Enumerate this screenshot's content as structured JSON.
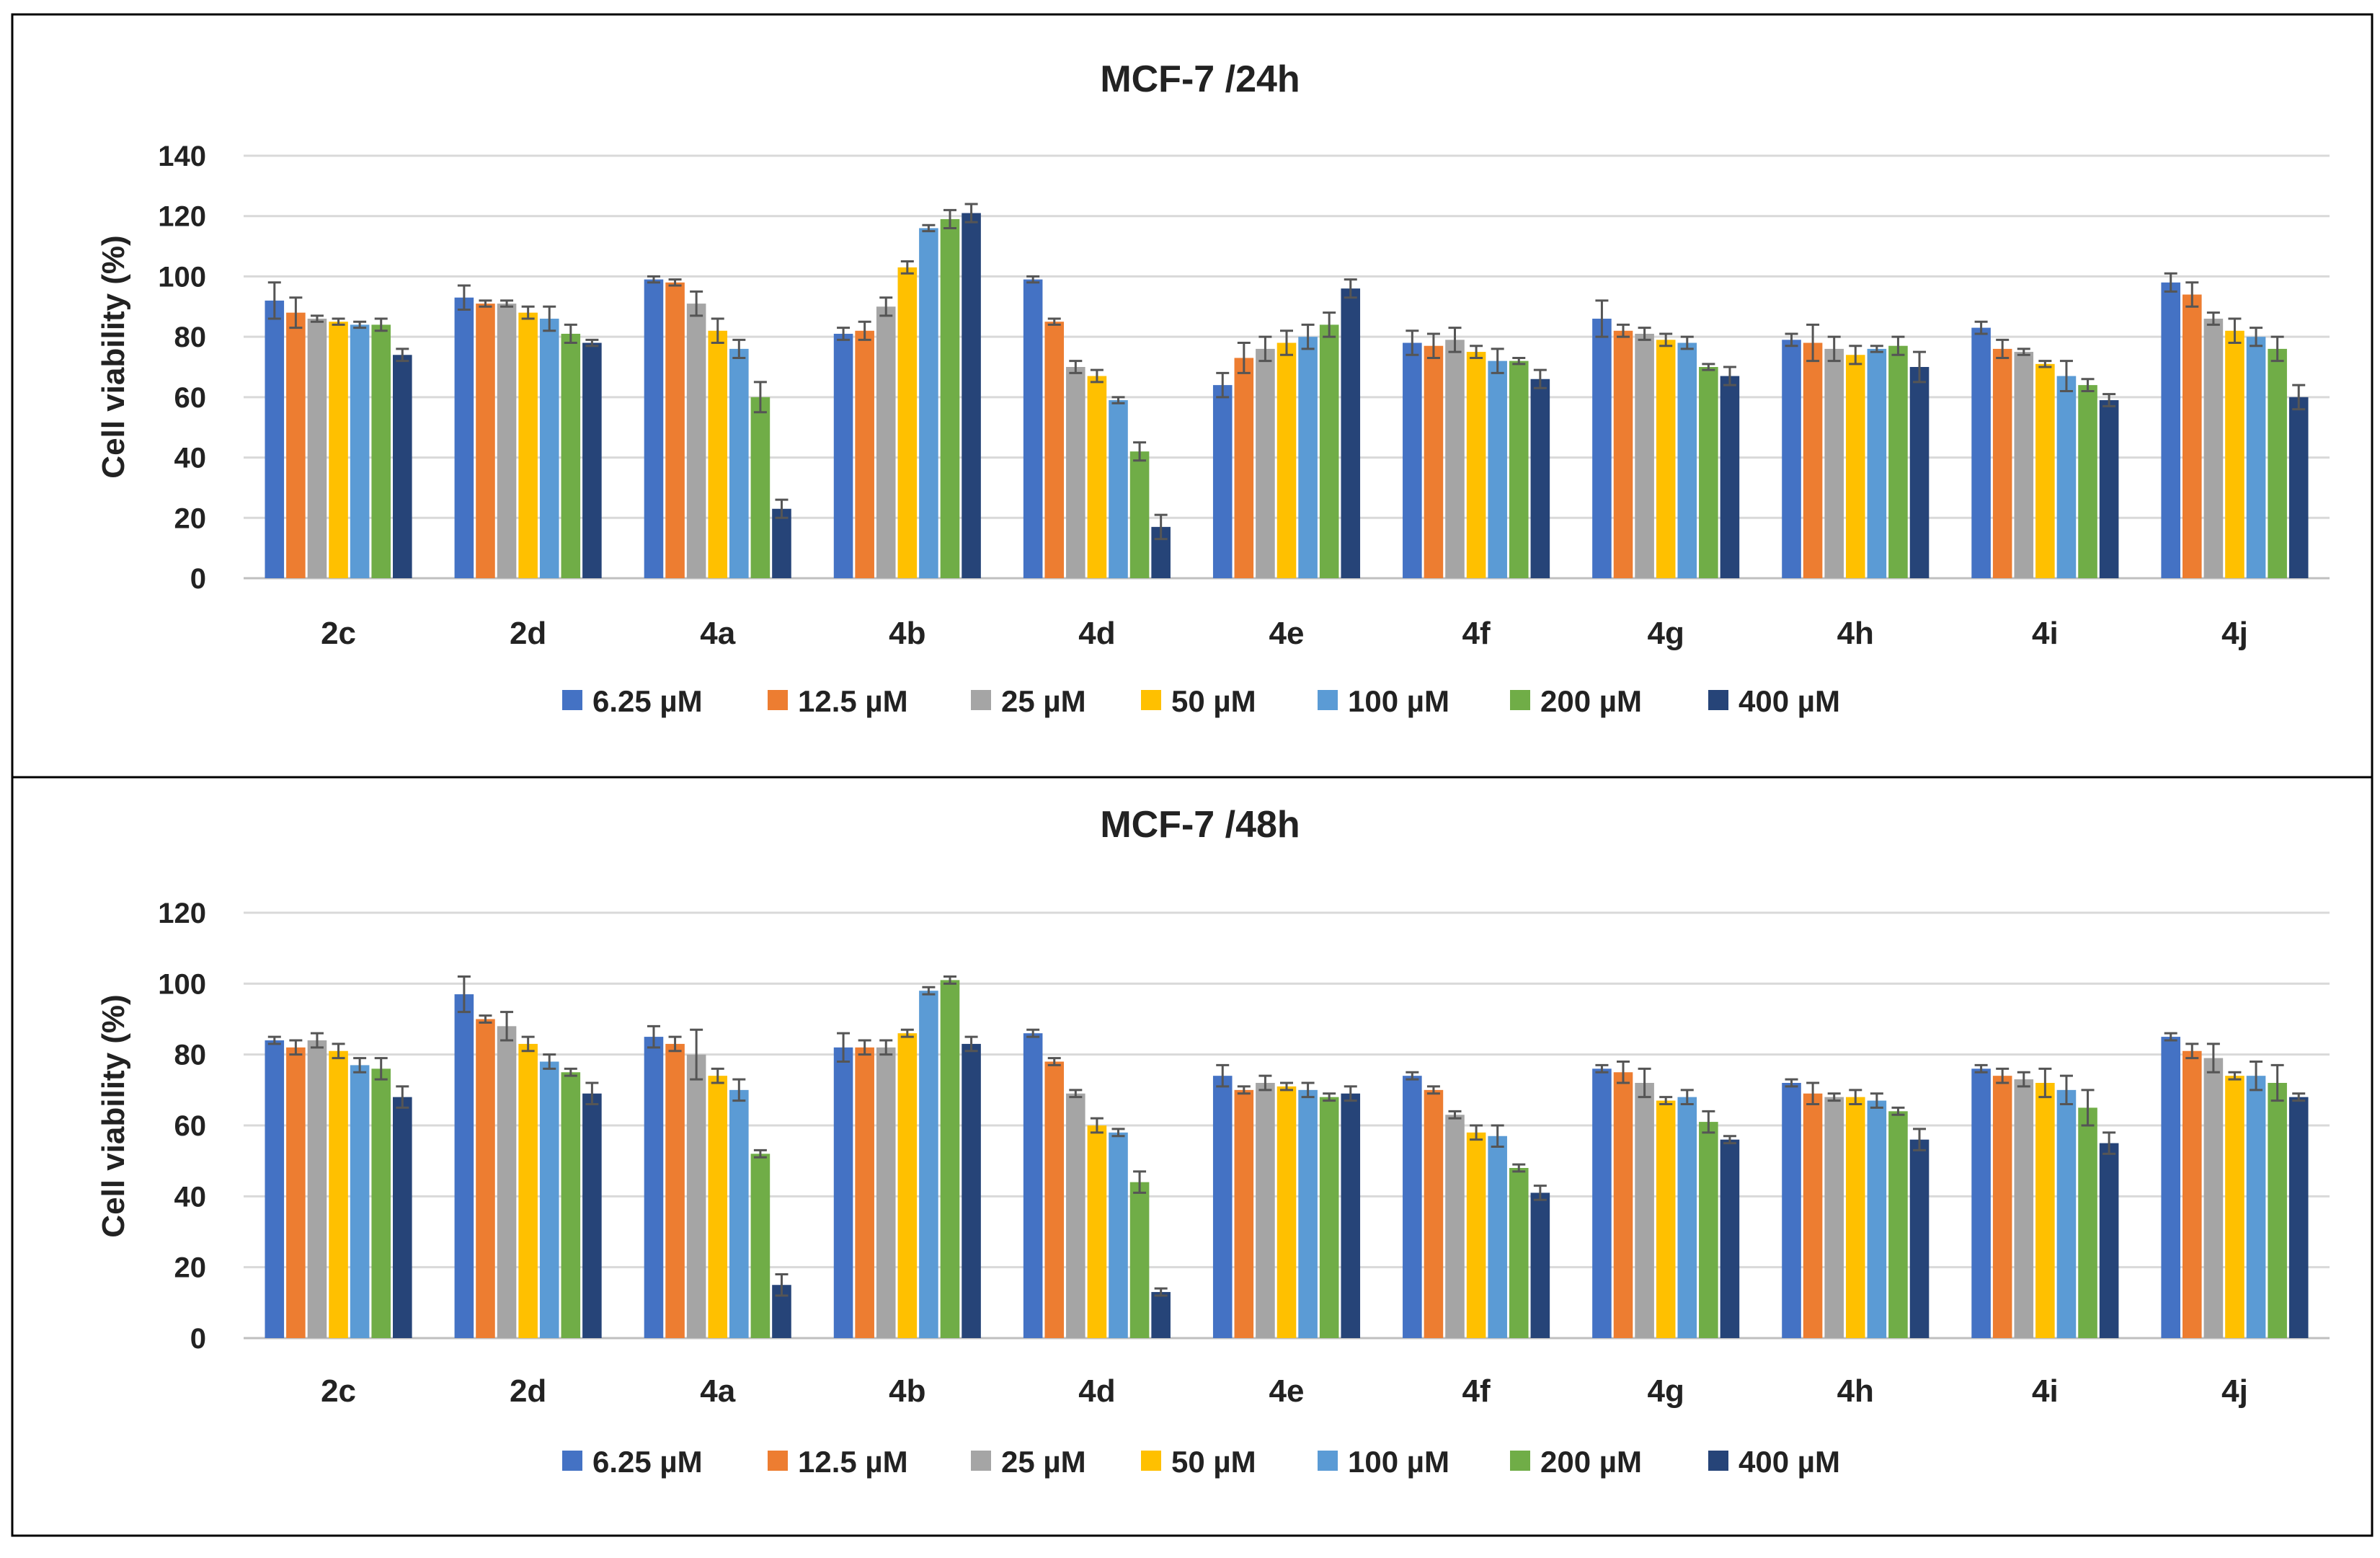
{
  "chart_data": [
    {
      "type": "bar",
      "title": "MCF-7 /24h",
      "xlabel": "",
      "ylabel": "Cell viability (%)",
      "ylim": [
        0,
        140
      ],
      "yticks": [
        0,
        20,
        40,
        60,
        80,
        100,
        120,
        140
      ],
      "grid": true,
      "legend": "bottom",
      "categories": [
        "2c",
        "2d",
        "4a",
        "4b",
        "4d",
        "4e",
        "4f",
        "4g",
        "4h",
        "4i",
        "4j"
      ],
      "series": [
        {
          "name": "6.25 µM",
          "color": "#4472c4",
          "values": [
            92,
            93,
            99,
            81,
            99,
            64,
            78,
            86,
            79,
            83,
            98
          ],
          "errors": [
            6,
            4,
            1,
            2,
            1,
            4,
            4,
            6,
            2,
            2,
            3
          ]
        },
        {
          "name": "12.5 µM",
          "color": "#ed7d31",
          "values": [
            88,
            91,
            98,
            82,
            85,
            73,
            77,
            82,
            78,
            76,
            94
          ],
          "errors": [
            5,
            1,
            1,
            3,
            1,
            5,
            4,
            2,
            6,
            3,
            4
          ]
        },
        {
          "name": "25 µM",
          "color": "#a5a5a5",
          "values": [
            86,
            91,
            91,
            90,
            70,
            76,
            79,
            81,
            76,
            75,
            86
          ],
          "errors": [
            1,
            1,
            4,
            3,
            2,
            4,
            4,
            2,
            4,
            1,
            2
          ]
        },
        {
          "name": "50 µM",
          "color": "#ffc000",
          "values": [
            85,
            88,
            82,
            103,
            67,
            78,
            75,
            79,
            74,
            71,
            82
          ],
          "errors": [
            1,
            2,
            4,
            2,
            2,
            4,
            2,
            2,
            3,
            1,
            4
          ]
        },
        {
          "name": "100 µM",
          "color": "#5b9bd5",
          "values": [
            84,
            86,
            76,
            116,
            59,
            80,
            72,
            78,
            76,
            67,
            80
          ],
          "errors": [
            1,
            4,
            3,
            1,
            1,
            4,
            4,
            2,
            1,
            5,
            3
          ]
        },
        {
          "name": "200 µM",
          "color": "#70ad47",
          "values": [
            84,
            81,
            60,
            119,
            42,
            84,
            72,
            70,
            77,
            64,
            76
          ],
          "errors": [
            2,
            3,
            5,
            3,
            3,
            4,
            1,
            1,
            3,
            2,
            4
          ]
        },
        {
          "name": "400 µM",
          "color": "#264478",
          "values": [
            74,
            78,
            23,
            121,
            17,
            96,
            66,
            67,
            70,
            59,
            60
          ],
          "errors": [
            2,
            1,
            3,
            3,
            4,
            3,
            3,
            3,
            5,
            2,
            4
          ]
        }
      ]
    },
    {
      "type": "bar",
      "title": "MCF-7 /48h",
      "xlabel": "",
      "ylabel": "Cell viability (%)",
      "ylim": [
        0,
        120
      ],
      "yticks": [
        0,
        20,
        40,
        60,
        80,
        100,
        120
      ],
      "grid": true,
      "legend": "bottom",
      "categories": [
        "2c",
        "2d",
        "4a",
        "4b",
        "4d",
        "4e",
        "4f",
        "4g",
        "4h",
        "4i",
        "4j"
      ],
      "series": [
        {
          "name": "6.25 µM",
          "color": "#4472c4",
          "values": [
            84,
            97,
            85,
            82,
            86,
            74,
            74,
            76,
            72,
            76,
            85
          ],
          "errors": [
            1,
            5,
            3,
            4,
            1,
            3,
            1,
            1,
            1,
            1,
            1
          ]
        },
        {
          "name": "12.5 µM",
          "color": "#ed7d31",
          "values": [
            82,
            90,
            83,
            82,
            78,
            70,
            70,
            75,
            69,
            74,
            81
          ],
          "errors": [
            2,
            1,
            2,
            2,
            1,
            1,
            1,
            3,
            3,
            2,
            2
          ]
        },
        {
          "name": "25 µM",
          "color": "#a5a5a5",
          "values": [
            84,
            88,
            80,
            82,
            69,
            72,
            63,
            72,
            68,
            73,
            79
          ],
          "errors": [
            2,
            4,
            7,
            2,
            1,
            2,
            1,
            4,
            1,
            2,
            4
          ]
        },
        {
          "name": "50 µM",
          "color": "#ffc000",
          "values": [
            81,
            83,
            74,
            86,
            60,
            71,
            58,
            67,
            68,
            72,
            74
          ],
          "errors": [
            2,
            2,
            2,
            1,
            2,
            1,
            2,
            1,
            2,
            4,
            1
          ]
        },
        {
          "name": "100 µM",
          "color": "#5b9bd5",
          "values": [
            77,
            78,
            70,
            98,
            58,
            70,
            57,
            68,
            67,
            70,
            74
          ],
          "errors": [
            2,
            2,
            3,
            1,
            1,
            2,
            3,
            2,
            2,
            4,
            4
          ]
        },
        {
          "name": "200 µM",
          "color": "#70ad47",
          "values": [
            76,
            75,
            52,
            101,
            44,
            68,
            48,
            61,
            64,
            65,
            72
          ],
          "errors": [
            3,
            1,
            1,
            1,
            3,
            1,
            1,
            3,
            1,
            5,
            5
          ]
        },
        {
          "name": "400 µM",
          "color": "#264478",
          "values": [
            68,
            69,
            15,
            83,
            13,
            69,
            41,
            56,
            56,
            55,
            68
          ],
          "errors": [
            3,
            3,
            3,
            2,
            1,
            2,
            2,
            1,
            3,
            3,
            1
          ]
        }
      ]
    }
  ]
}
